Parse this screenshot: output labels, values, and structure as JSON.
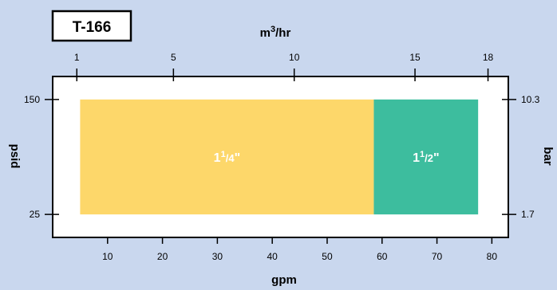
{
  "model": "T-166",
  "chart_data": {
    "type": "range-bar",
    "xlabel_bottom": "gpm",
    "xlabel_top": {
      "base": "m",
      "sup": "3",
      "rest": "/hr"
    },
    "ylabel_left": "psid",
    "ylabel_right": "bar",
    "x_bottom": {
      "range": [
        0,
        83
      ],
      "ticks": [
        10,
        20,
        30,
        40,
        50,
        60,
        70,
        80
      ]
    },
    "x_top_ticks": [
      {
        "label": "1",
        "gpm": 4.4
      },
      {
        "label": "5",
        "gpm": 22.0
      },
      {
        "label": "10",
        "gpm": 44.0
      },
      {
        "label": "15",
        "gpm": 66.0
      },
      {
        "label": "18",
        "gpm": 79.3
      }
    ],
    "y_left": {
      "range": [
        0,
        175
      ],
      "ticks": [
        25,
        150
      ]
    },
    "y_right_ticks": [
      {
        "label": "10.3",
        "psid": 150
      },
      {
        "label": "1.7",
        "psid": 25
      }
    ],
    "bands": [
      {
        "whole": "1",
        "num": "1",
        "den": "4",
        "unit": "\"",
        "x_start": 5,
        "x_end": 58.5,
        "y_low": 25,
        "y_high": 150,
        "color": "#fdd76a"
      },
      {
        "whole": "1",
        "num": "1",
        "den": "2",
        "unit": "\"",
        "x_start": 58.5,
        "x_end": 77.5,
        "y_low": 25,
        "y_high": 150,
        "color": "#3dbd9e"
      }
    ]
  },
  "colors": {
    "background": "#c9d7ee",
    "plot": "#ffffff",
    "frame": "#000000"
  }
}
